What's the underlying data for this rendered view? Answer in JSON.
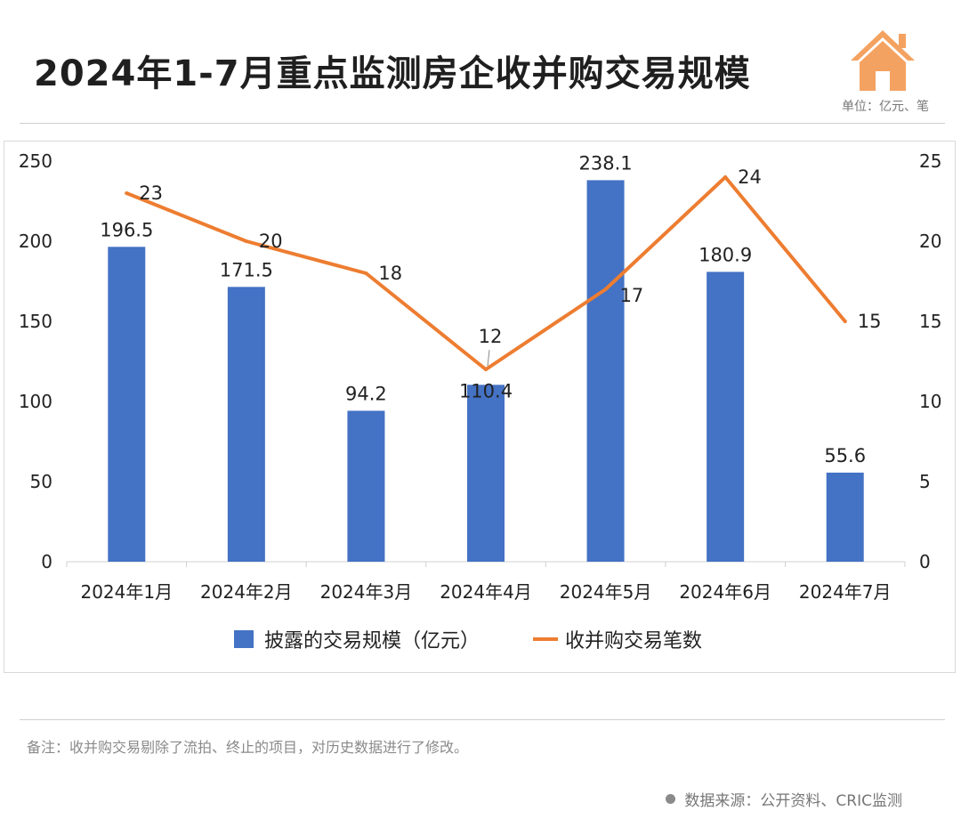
{
  "header": {
    "title": "2024年1-7月重点监测房企收并购交易规模",
    "unit": "单位：亿元、笔"
  },
  "footer": {
    "note": "备注：收并购交易剔除了流拍、终止的项目，对历史数据进行了修改。",
    "source": "数据来源：公开资料、CRIC监测"
  },
  "icons": {
    "logo": "house-icon"
  },
  "colors": {
    "bar": "#4472C4",
    "line": "#ED7D31",
    "logo": "#F4A261"
  },
  "chart_data": {
    "type": "bar",
    "categories": [
      "2024年1月",
      "2024年2月",
      "2024年3月",
      "2024年4月",
      "2024年5月",
      "2024年6月",
      "2024年7月"
    ],
    "series": [
      {
        "name": "披露的交易规模（亿元）",
        "type": "bar",
        "axis": "left",
        "values": [
          196.5,
          171.5,
          94.2,
          110.4,
          238.1,
          180.9,
          55.6
        ]
      },
      {
        "name": "收并购交易笔数",
        "type": "line",
        "axis": "right",
        "values": [
          23,
          20,
          18,
          12,
          17,
          24,
          15
        ]
      }
    ],
    "y_left": {
      "min": 0,
      "max": 250,
      "ticks": [
        0,
        50,
        100,
        150,
        200,
        250
      ]
    },
    "y_right": {
      "min": 0,
      "max": 25,
      "ticks": [
        0,
        5,
        10,
        15,
        20,
        25
      ]
    },
    "grid": false,
    "legend": "bottom"
  }
}
